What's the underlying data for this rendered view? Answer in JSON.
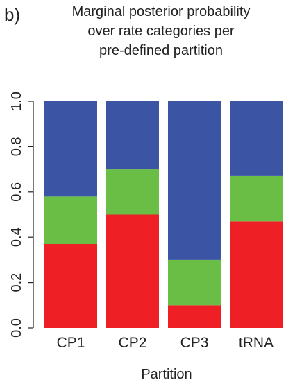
{
  "panel_label": "b)",
  "chart_data": {
    "type": "bar",
    "stacked": true,
    "title": [
      "Marginal posterior probability",
      "over rate categories per",
      "pre-defined partition"
    ],
    "xlabel": "Partition",
    "ylabel": "",
    "ylim": [
      0,
      1
    ],
    "yticks": [
      "0.0",
      "0.2",
      "0.4",
      "0.6",
      "0.8",
      "1.0"
    ],
    "categories": [
      "CP1",
      "CP2",
      "CP3",
      "tRNA"
    ],
    "series": [
      {
        "color": "#ee2026",
        "values": [
          0.37,
          0.5,
          0.1,
          0.47
        ]
      },
      {
        "color": "#6abd45",
        "values": [
          0.21,
          0.2,
          0.2,
          0.2
        ]
      },
      {
        "color": "#3b54a4",
        "values": [
          0.42,
          0.3,
          0.7,
          0.33
        ]
      }
    ],
    "grid": false,
    "legend": "none"
  }
}
